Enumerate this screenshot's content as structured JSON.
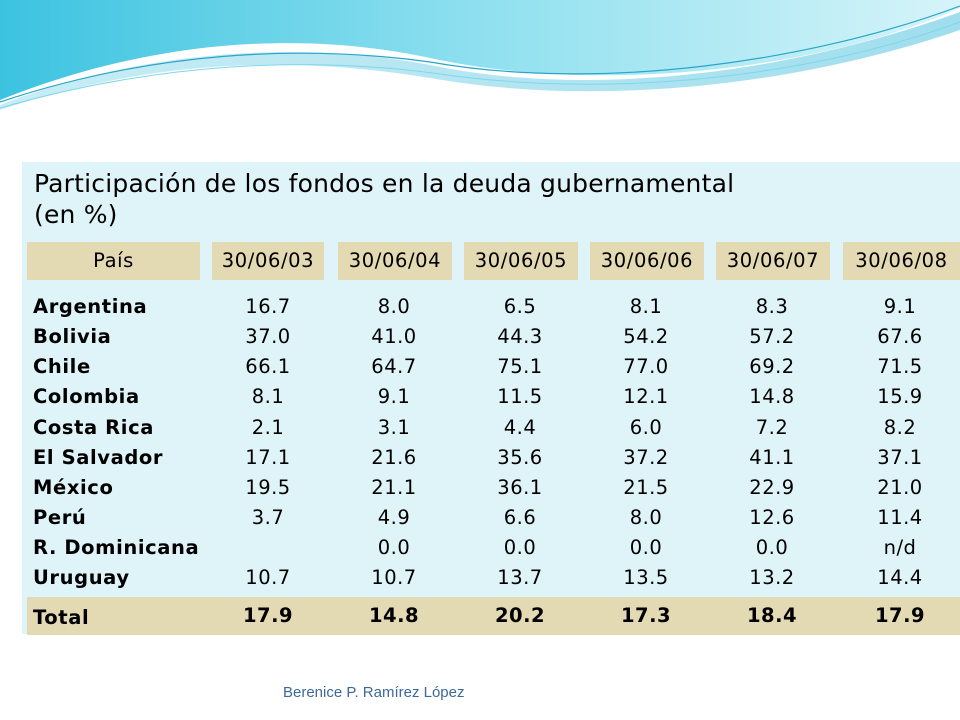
{
  "slide": {
    "title_line1": "Participación de los fondos en la deuda gubernamental",
    "title_line2": "(en %)",
    "footer": "Berenice P. Ramírez López"
  },
  "table": {
    "header_country": "País",
    "dates": [
      "30/06/03",
      "30/06/04",
      "30/06/05",
      "30/06/06",
      "30/06/07",
      "30/06/08"
    ],
    "rows": [
      {
        "country": "Argentina",
        "values": [
          "16.7",
          "8.0",
          "6.5",
          "8.1",
          "8.3",
          "9.1"
        ]
      },
      {
        "country": "Bolivia",
        "values": [
          "37.0",
          "41.0",
          "44.3",
          "54.2",
          "57.2",
          "67.6"
        ]
      },
      {
        "country": "Chile",
        "values": [
          "66.1",
          "64.7",
          "75.1",
          "77.0",
          "69.2",
          "71.5"
        ]
      },
      {
        "country": "Colombia",
        "values": [
          "8.1",
          "9.1",
          "11.5",
          "12.1",
          "14.8",
          "15.9"
        ]
      },
      {
        "country": "Costa Rica",
        "values": [
          "2.1",
          "3.1",
          "4.4",
          "6.0",
          "7.2",
          "8.2"
        ]
      },
      {
        "country": "El Salvador",
        "values": [
          "17.1",
          "21.6",
          "35.6",
          "37.2",
          "41.1",
          "37.1"
        ]
      },
      {
        "country": "México",
        "values": [
          "19.5",
          "21.1",
          "36.1",
          "21.5",
          "22.9",
          "21.0"
        ]
      },
      {
        "country": "Perú",
        "values": [
          "3.7",
          "4.9",
          "6.6",
          "8.0",
          "12.6",
          "11.4"
        ]
      },
      {
        "country": "R. Dominicana",
        "values": [
          "",
          "0.0",
          "0.0",
          "0.0",
          "0.0",
          "n/d"
        ]
      },
      {
        "country": "Uruguay",
        "values": [
          "10.7",
          "10.7",
          "13.7",
          "13.5",
          "13.2",
          "14.4"
        ]
      }
    ],
    "total": {
      "country": "Total",
      "values": [
        "17.9",
        "14.8",
        "20.2",
        "17.3",
        "18.4",
        "17.9"
      ]
    }
  },
  "colors": {
    "panel": "#dff4f8",
    "header": "#e3d9b3",
    "footer_text": "#3a6a9c",
    "wave_light": "#b8ecf4",
    "wave_mid": "#6fd0e6",
    "wave_dark": "#2aa5c8"
  }
}
